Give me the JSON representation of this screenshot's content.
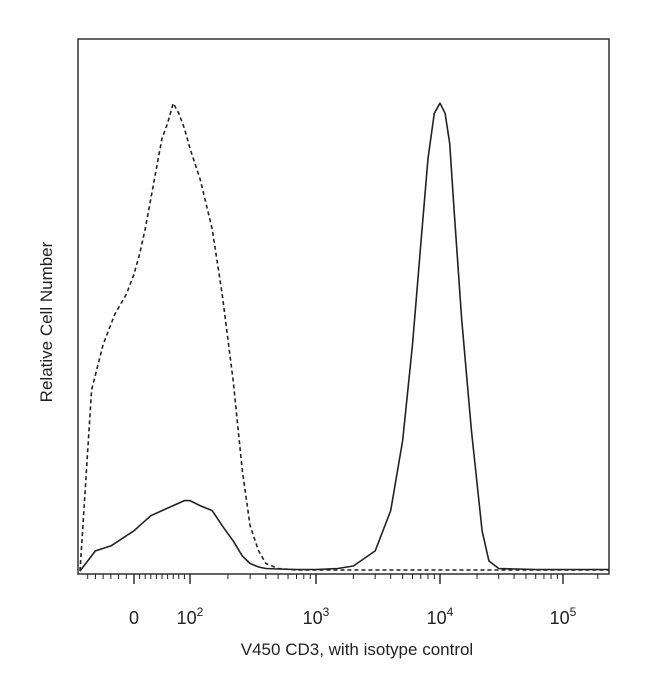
{
  "chart_data": {
    "type": "line",
    "xlabel": "V450 CD3, with isotype control",
    "ylabel": "Relative Cell Number",
    "x_scale": "biexponential",
    "x_ticks": [
      {
        "value": 0,
        "base": "0",
        "exp": ""
      },
      {
        "value": 100,
        "base": "10",
        "exp": "2"
      },
      {
        "value": 1000,
        "base": "10",
        "exp": "3"
      },
      {
        "value": 10000,
        "base": "10",
        "exp": "4"
      },
      {
        "value": 100000,
        "base": "10",
        "exp": "5"
      }
    ],
    "y_ticks_shown": false,
    "ylim": [
      0,
      100
    ],
    "series": [
      {
        "style": "dashed",
        "color": "#222222",
        "x": [
          -70,
          -55,
          -40,
          -25,
          -10,
          0,
          10,
          20,
          30,
          40,
          50,
          60,
          70,
          80,
          90,
          100,
          120,
          150,
          180,
          220,
          260,
          300,
          350,
          400,
          500,
          700,
          1000,
          2000,
          5000,
          10000,
          30000,
          100000,
          250000
        ],
        "y": [
          0,
          36,
          45,
          51,
          55,
          59,
          63,
          68,
          74,
          80,
          86,
          89,
          93,
          91,
          88,
          84,
          78,
          68,
          55,
          38,
          20,
          9,
          4,
          1.5,
          0.5,
          0.2,
          0.2,
          0.2,
          0.2,
          0.2,
          0.2,
          0.2,
          0.2
        ]
      },
      {
        "style": "solid",
        "color": "#222222",
        "x": [
          -70,
          -50,
          -30,
          -10,
          0,
          10,
          30,
          50,
          70,
          90,
          100,
          120,
          150,
          180,
          220,
          260,
          300,
          350,
          400,
          500,
          700,
          1000,
          1500,
          2000,
          3000,
          4000,
          5000,
          6000,
          7000,
          8000,
          9000,
          10000,
          11000,
          12000,
          13000,
          15000,
          18000,
          22000,
          25000,
          30000,
          60000,
          100000,
          250000
        ],
        "y": [
          0,
          4,
          5,
          7,
          8,
          9,
          11,
          12,
          13,
          14,
          14,
          13,
          12,
          9,
          6,
          3,
          1.5,
          0.8,
          0.5,
          0.4,
          0.3,
          0.3,
          0.5,
          1,
          4,
          12,
          26,
          45,
          65,
          82,
          91,
          93,
          91,
          85,
          72,
          50,
          28,
          8,
          2,
          0.5,
          0.3,
          0.3,
          0.3
        ]
      }
    ]
  }
}
